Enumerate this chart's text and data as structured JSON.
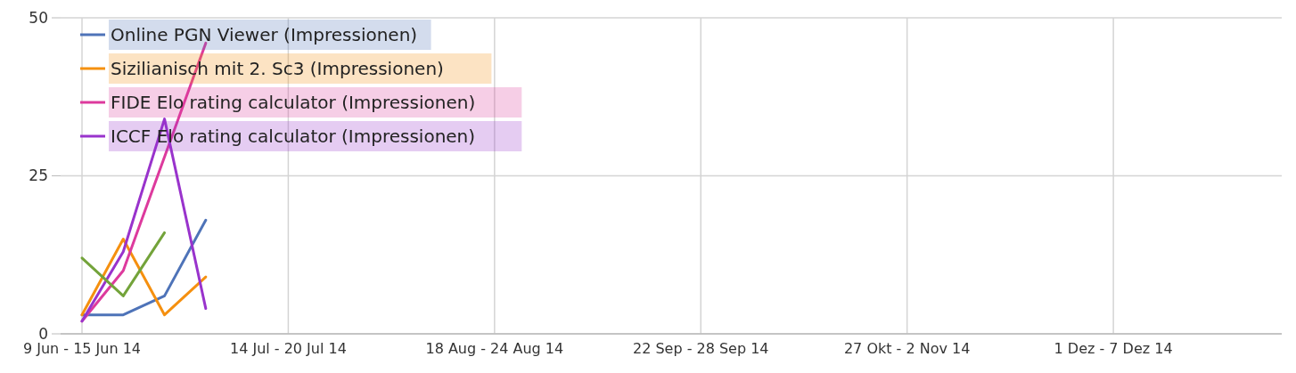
{
  "chart_data": {
    "type": "line",
    "categories": [
      "9 Jun - 15 Jun 14",
      null,
      null,
      null,
      null,
      "14 Jul - 20 Jul 14",
      null,
      null,
      null,
      null,
      "18 Aug - 24 Aug 14",
      null,
      null,
      null,
      null,
      "22 Sep - 28 Sep 14",
      null,
      null,
      null,
      null,
      "27 Okt - 2 Nov 14",
      null,
      null,
      null,
      null,
      "1 Dez - 7 Dez 14",
      null,
      null,
      null,
      null
    ],
    "series": [
      {
        "name": "Online PGN Viewer (Impressionen)",
        "color": "#4e73b8",
        "values": [
          3,
          3,
          6,
          18,
          null,
          null,
          null,
          null,
          null,
          null,
          null,
          null,
          null,
          null,
          null,
          null,
          null,
          null,
          null,
          null,
          null,
          null,
          null,
          null,
          null,
          null,
          null,
          null,
          null,
          null
        ]
      },
      {
        "name": "Sizilianisch mit 2. Sc3 (Impressionen)",
        "color": "#f5900f",
        "values": [
          3,
          15,
          3,
          9,
          null,
          null,
          null,
          null,
          null,
          null,
          null,
          null,
          null,
          null,
          null,
          null,
          null,
          null,
          null,
          null,
          null,
          null,
          null,
          null,
          null,
          null,
          null,
          null,
          null,
          null
        ]
      },
      {
        "name": "FIDE Elo rating calculator (Impressionen)",
        "color": "#dd3a9d",
        "values": [
          2,
          10,
          28,
          46,
          null,
          null,
          null,
          null,
          null,
          null,
          null,
          null,
          null,
          null,
          null,
          null,
          null,
          null,
          null,
          null,
          null,
          null,
          null,
          null,
          null,
          null,
          null,
          null,
          null,
          null
        ]
      },
      {
        "name": "ICCF Elo rating calculator (Impressionen)",
        "color": "#9933cc",
        "values": [
          2,
          13,
          34,
          4,
          null,
          null,
          null,
          null,
          null,
          null,
          null,
          null,
          null,
          null,
          null,
          null,
          null,
          null,
          null,
          null,
          null,
          null,
          null,
          null,
          null,
          null,
          null,
          null,
          null,
          null
        ]
      },
      {
        "color": "#73a33a",
        "values": [
          12,
          6,
          16,
          null,
          null,
          null,
          null,
          null,
          null,
          null,
          null,
          null,
          null,
          null,
          null,
          null,
          null,
          null,
          null,
          null,
          null,
          null,
          null,
          null,
          null,
          null,
          null,
          null,
          null,
          null
        ]
      }
    ],
    "ylim": [
      0,
      50
    ],
    "yticks": [
      0,
      25,
      50
    ],
    "grid": true,
    "legend": "top left"
  }
}
